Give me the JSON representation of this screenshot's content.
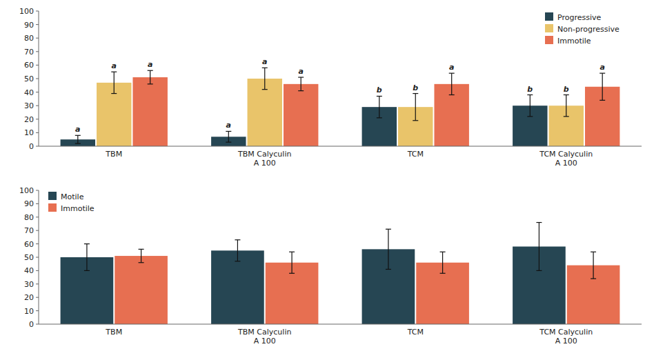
{
  "chart_data": [
    {
      "type": "bar",
      "categories": [
        "TBM",
        "TBM Calyculin\nA 100",
        "TCM",
        "TCM Calyculin\nA 100"
      ],
      "series": [
        {
          "name": "Progressive",
          "color": "#264653",
          "values": [
            5,
            7,
            29,
            30
          ],
          "errors": [
            3,
            4,
            8,
            8
          ],
          "annotations": [
            "a",
            "a",
            "b",
            "b"
          ]
        },
        {
          "name": "Non-progressive",
          "color": "#e9c46a",
          "values": [
            47,
            50,
            29,
            30
          ],
          "errors": [
            8,
            8,
            10,
            8
          ],
          "annotations": [
            "a",
            "a",
            "b",
            "b"
          ]
        },
        {
          "name": "Immotile",
          "color": "#e76f51",
          "values": [
            51,
            46,
            46,
            44
          ],
          "errors": [
            5,
            5,
            8,
            10
          ],
          "annotations": [
            "a",
            "a",
            "a",
            "a"
          ]
        }
      ],
      "ylim": [
        0,
        100
      ],
      "yticks": [
        0,
        10,
        20,
        30,
        40,
        50,
        60,
        70,
        80,
        90,
        100
      ],
      "grid": false,
      "legend": "upper right"
    },
    {
      "type": "bar",
      "categories": [
        "TBM",
        "TBM Calyculin\nA 100",
        "TCM",
        "TCM Calyculin\nA 100"
      ],
      "series": [
        {
          "name": "Motile",
          "color": "#264653",
          "values": [
            50,
            55,
            56,
            58
          ],
          "errors": [
            10,
            8,
            15,
            18
          ]
        },
        {
          "name": "Immotile",
          "color": "#e76f51",
          "values": [
            51,
            46,
            46,
            44
          ],
          "errors": [
            5,
            8,
            8,
            10
          ]
        }
      ],
      "ylim": [
        0,
        100
      ],
      "yticks": [
        0,
        10,
        20,
        30,
        40,
        50,
        60,
        70,
        80,
        90,
        100
      ],
      "grid": false,
      "legend": "upper left"
    }
  ]
}
